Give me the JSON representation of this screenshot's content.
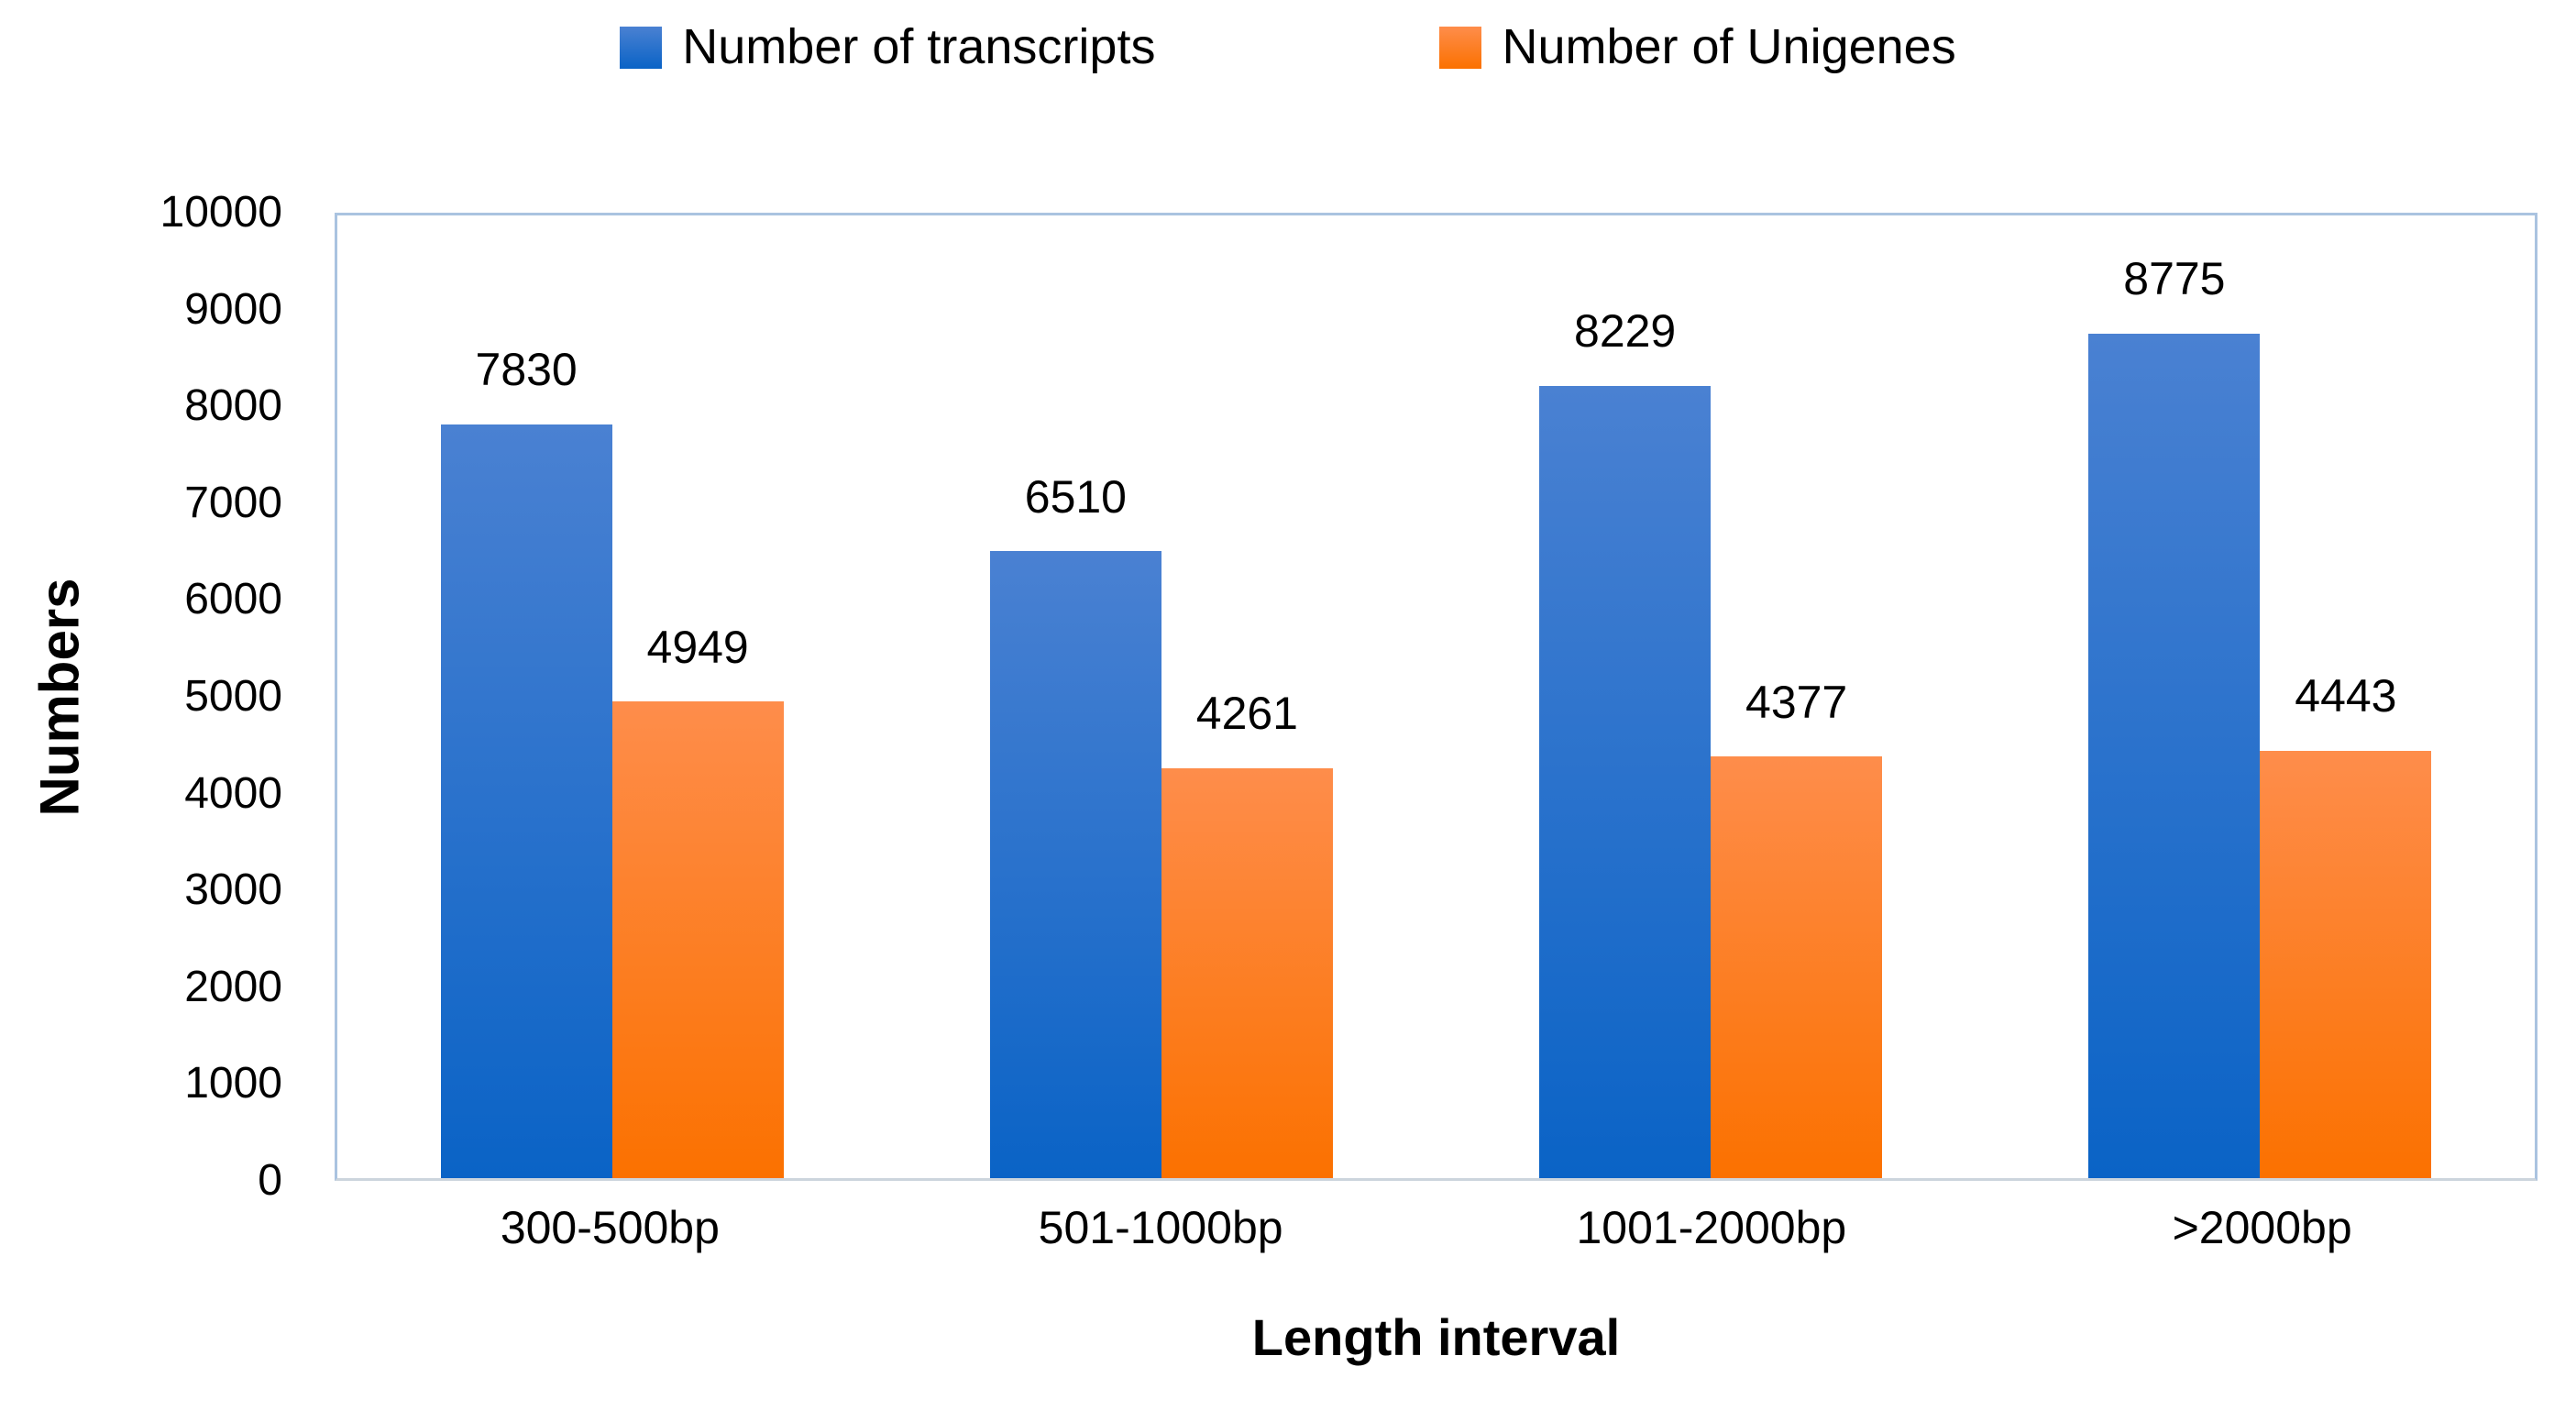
{
  "chart_data": {
    "type": "bar",
    "categories": [
      "300-500bp",
      "501-1000bp",
      "1001-2000bp",
      ">2000bp"
    ],
    "series": [
      {
        "name": "Number of transcripts",
        "values": [
          7830,
          6510,
          8229,
          8775
        ],
        "color": "#1e6dc8",
        "gradient_top": "#4a81d2",
        "gradient_bottom": "#0a63c6"
      },
      {
        "name": "Number of Unigenes",
        "values": [
          4949,
          4261,
          4377,
          4443
        ],
        "color": "#fb7d2f",
        "gradient_top": "#fe8d4b",
        "gradient_bottom": "#fb7100"
      }
    ],
    "xlabel": "Length interval",
    "ylabel": "Numbers",
    "ylim": [
      0,
      10000
    ],
    "yticks": [
      0,
      1000,
      2000,
      3000,
      4000,
      5000,
      6000,
      7000,
      8000,
      9000,
      10000
    ],
    "legend_position": "top",
    "grid": false,
    "data_labels": true,
    "plot_border_color": "#aac3e0"
  }
}
